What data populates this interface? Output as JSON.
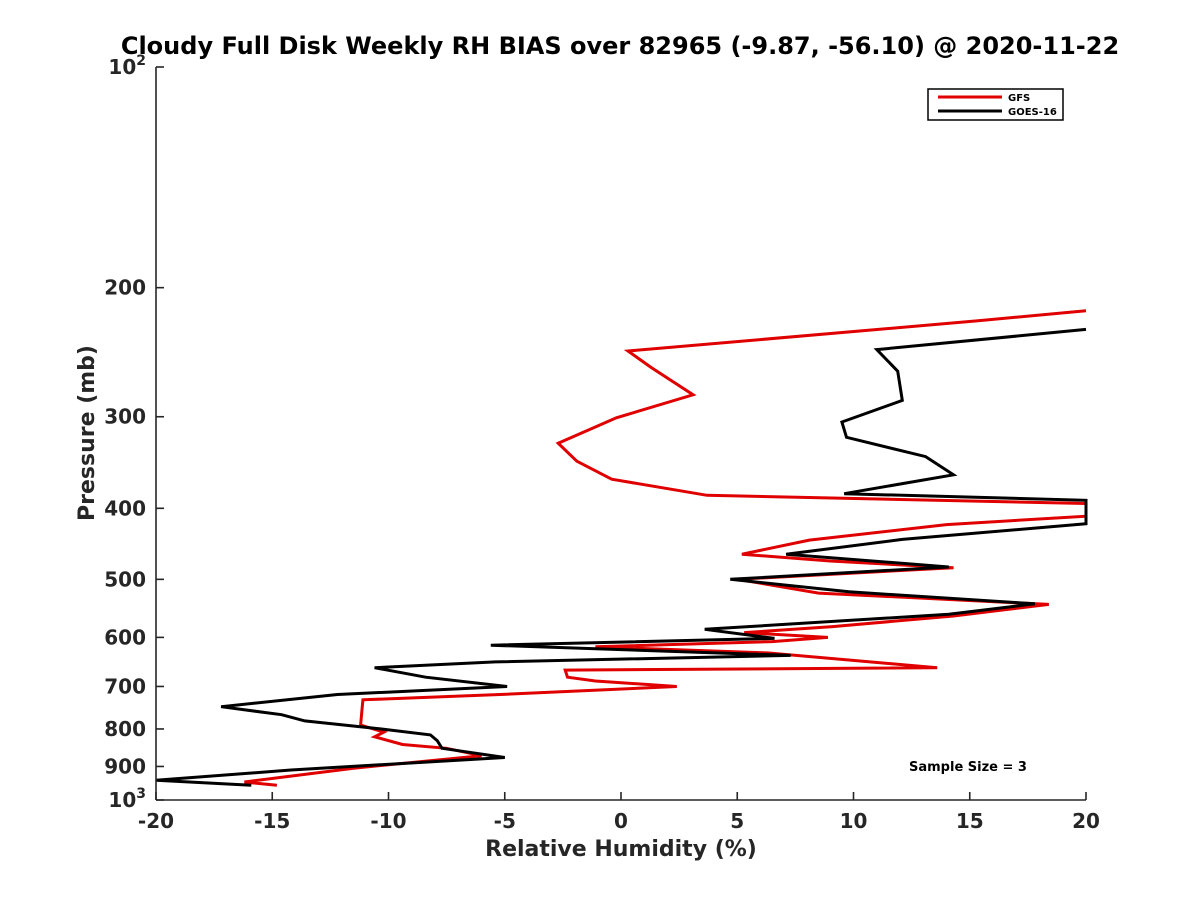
{
  "chart_data": {
    "type": "line",
    "title": "Cloudy Full Disk Weekly RH BIAS over 82965 (-9.87, -56.10) @ 2020-11-22",
    "xlabel": "Relative Humidity (%)",
    "ylabel": "Pressure (mb)",
    "xlim": [
      -20,
      20
    ],
    "ylim": [
      100,
      1000
    ],
    "y_scale": "log",
    "y_reversed": true,
    "x_ticks": [
      "-20",
      "-15",
      "-10",
      "-5",
      "0",
      "5",
      "10",
      "15",
      "20"
    ],
    "y_ticks": [
      {
        "value": 100,
        "base": "10",
        "exp": "2"
      },
      {
        "value": 200,
        "label": "200"
      },
      {
        "value": 300,
        "label": "300"
      },
      {
        "value": 400,
        "label": "400"
      },
      {
        "value": 500,
        "label": "500"
      },
      {
        "value": 600,
        "label": "600"
      },
      {
        "value": 700,
        "label": "700"
      },
      {
        "value": 800,
        "label": "800"
      },
      {
        "value": 900,
        "label": "900"
      },
      {
        "value": 1000,
        "base": "10",
        "exp": "3"
      }
    ],
    "legend_position": "top-right",
    "annotation": "Sample Size = 3",
    "series": [
      {
        "name": "GFS",
        "color": "#e00000",
        "points": [
          [
            20,
            215
          ],
          [
            15.3,
            222
          ],
          [
            0.3,
            244
          ],
          [
            1.3,
            257
          ],
          [
            3.1,
            280
          ],
          [
            -0.2,
            301
          ],
          [
            -2.7,
            326
          ],
          [
            -1.9,
            345
          ],
          [
            -0.4,
            365
          ],
          [
            3.7,
            384
          ],
          [
            20,
            394
          ],
          [
            20,
            410
          ],
          [
            14,
            421
          ],
          [
            8.1,
            442
          ],
          [
            5.2,
            462
          ],
          [
            9,
            472
          ],
          [
            14.3,
            482
          ],
          [
            5,
            500
          ],
          [
            8.5,
            522
          ],
          [
            18.4,
            541
          ],
          [
            14.3,
            561
          ],
          [
            9.1,
            580
          ],
          [
            5.3,
            591
          ],
          [
            8.9,
            600
          ],
          [
            6.5,
            608
          ],
          [
            -1.1,
            618
          ],
          [
            6.3,
            630
          ],
          [
            13.6,
            660
          ],
          [
            -2.4,
            665
          ],
          [
            -2.3,
            680
          ],
          [
            -1.1,
            688
          ],
          [
            2.4,
            700
          ],
          [
            -5.2,
            718
          ],
          [
            -11.1,
            730
          ],
          [
            -11.2,
            790
          ],
          [
            -10.2,
            808
          ],
          [
            -10.6,
            820
          ],
          [
            -9.4,
            840
          ],
          [
            -7.5,
            850
          ],
          [
            -6,
            870
          ],
          [
            -11.5,
            905
          ],
          [
            -16.2,
            945
          ],
          [
            -14.8,
            955
          ]
        ]
      },
      {
        "name": "GOES-16",
        "color": "#000000",
        "points": [
          [
            20,
            228
          ],
          [
            11,
            243
          ],
          [
            11.9,
            260
          ],
          [
            12.1,
            285
          ],
          [
            9.5,
            305
          ],
          [
            9.7,
            320
          ],
          [
            13.1,
            340
          ],
          [
            14.3,
            360
          ],
          [
            9.6,
            382
          ],
          [
            20,
            390
          ],
          [
            20,
            420
          ],
          [
            12.1,
            441
          ],
          [
            7.1,
            462
          ],
          [
            14.1,
            481
          ],
          [
            4.7,
            500
          ],
          [
            9.8,
            520
          ],
          [
            17.8,
            540
          ],
          [
            14.1,
            558
          ],
          [
            3.6,
            585
          ],
          [
            6.6,
            602
          ],
          [
            -5.6,
            615
          ],
          [
            7.3,
            635
          ],
          [
            -5.4,
            648
          ],
          [
            -10.6,
            660
          ],
          [
            -8.4,
            680
          ],
          [
            -4.9,
            700
          ],
          [
            -12.2,
            718
          ],
          [
            -17.2,
            746
          ],
          [
            -14.6,
            765
          ],
          [
            -13.6,
            780
          ],
          [
            -10.3,
            800
          ],
          [
            -8.2,
            815
          ],
          [
            -7.9,
            830
          ],
          [
            -7.7,
            850
          ],
          [
            -5,
            875
          ],
          [
            -14.2,
            910
          ],
          [
            -20,
            940
          ],
          [
            -15.9,
            955
          ]
        ]
      }
    ]
  }
}
